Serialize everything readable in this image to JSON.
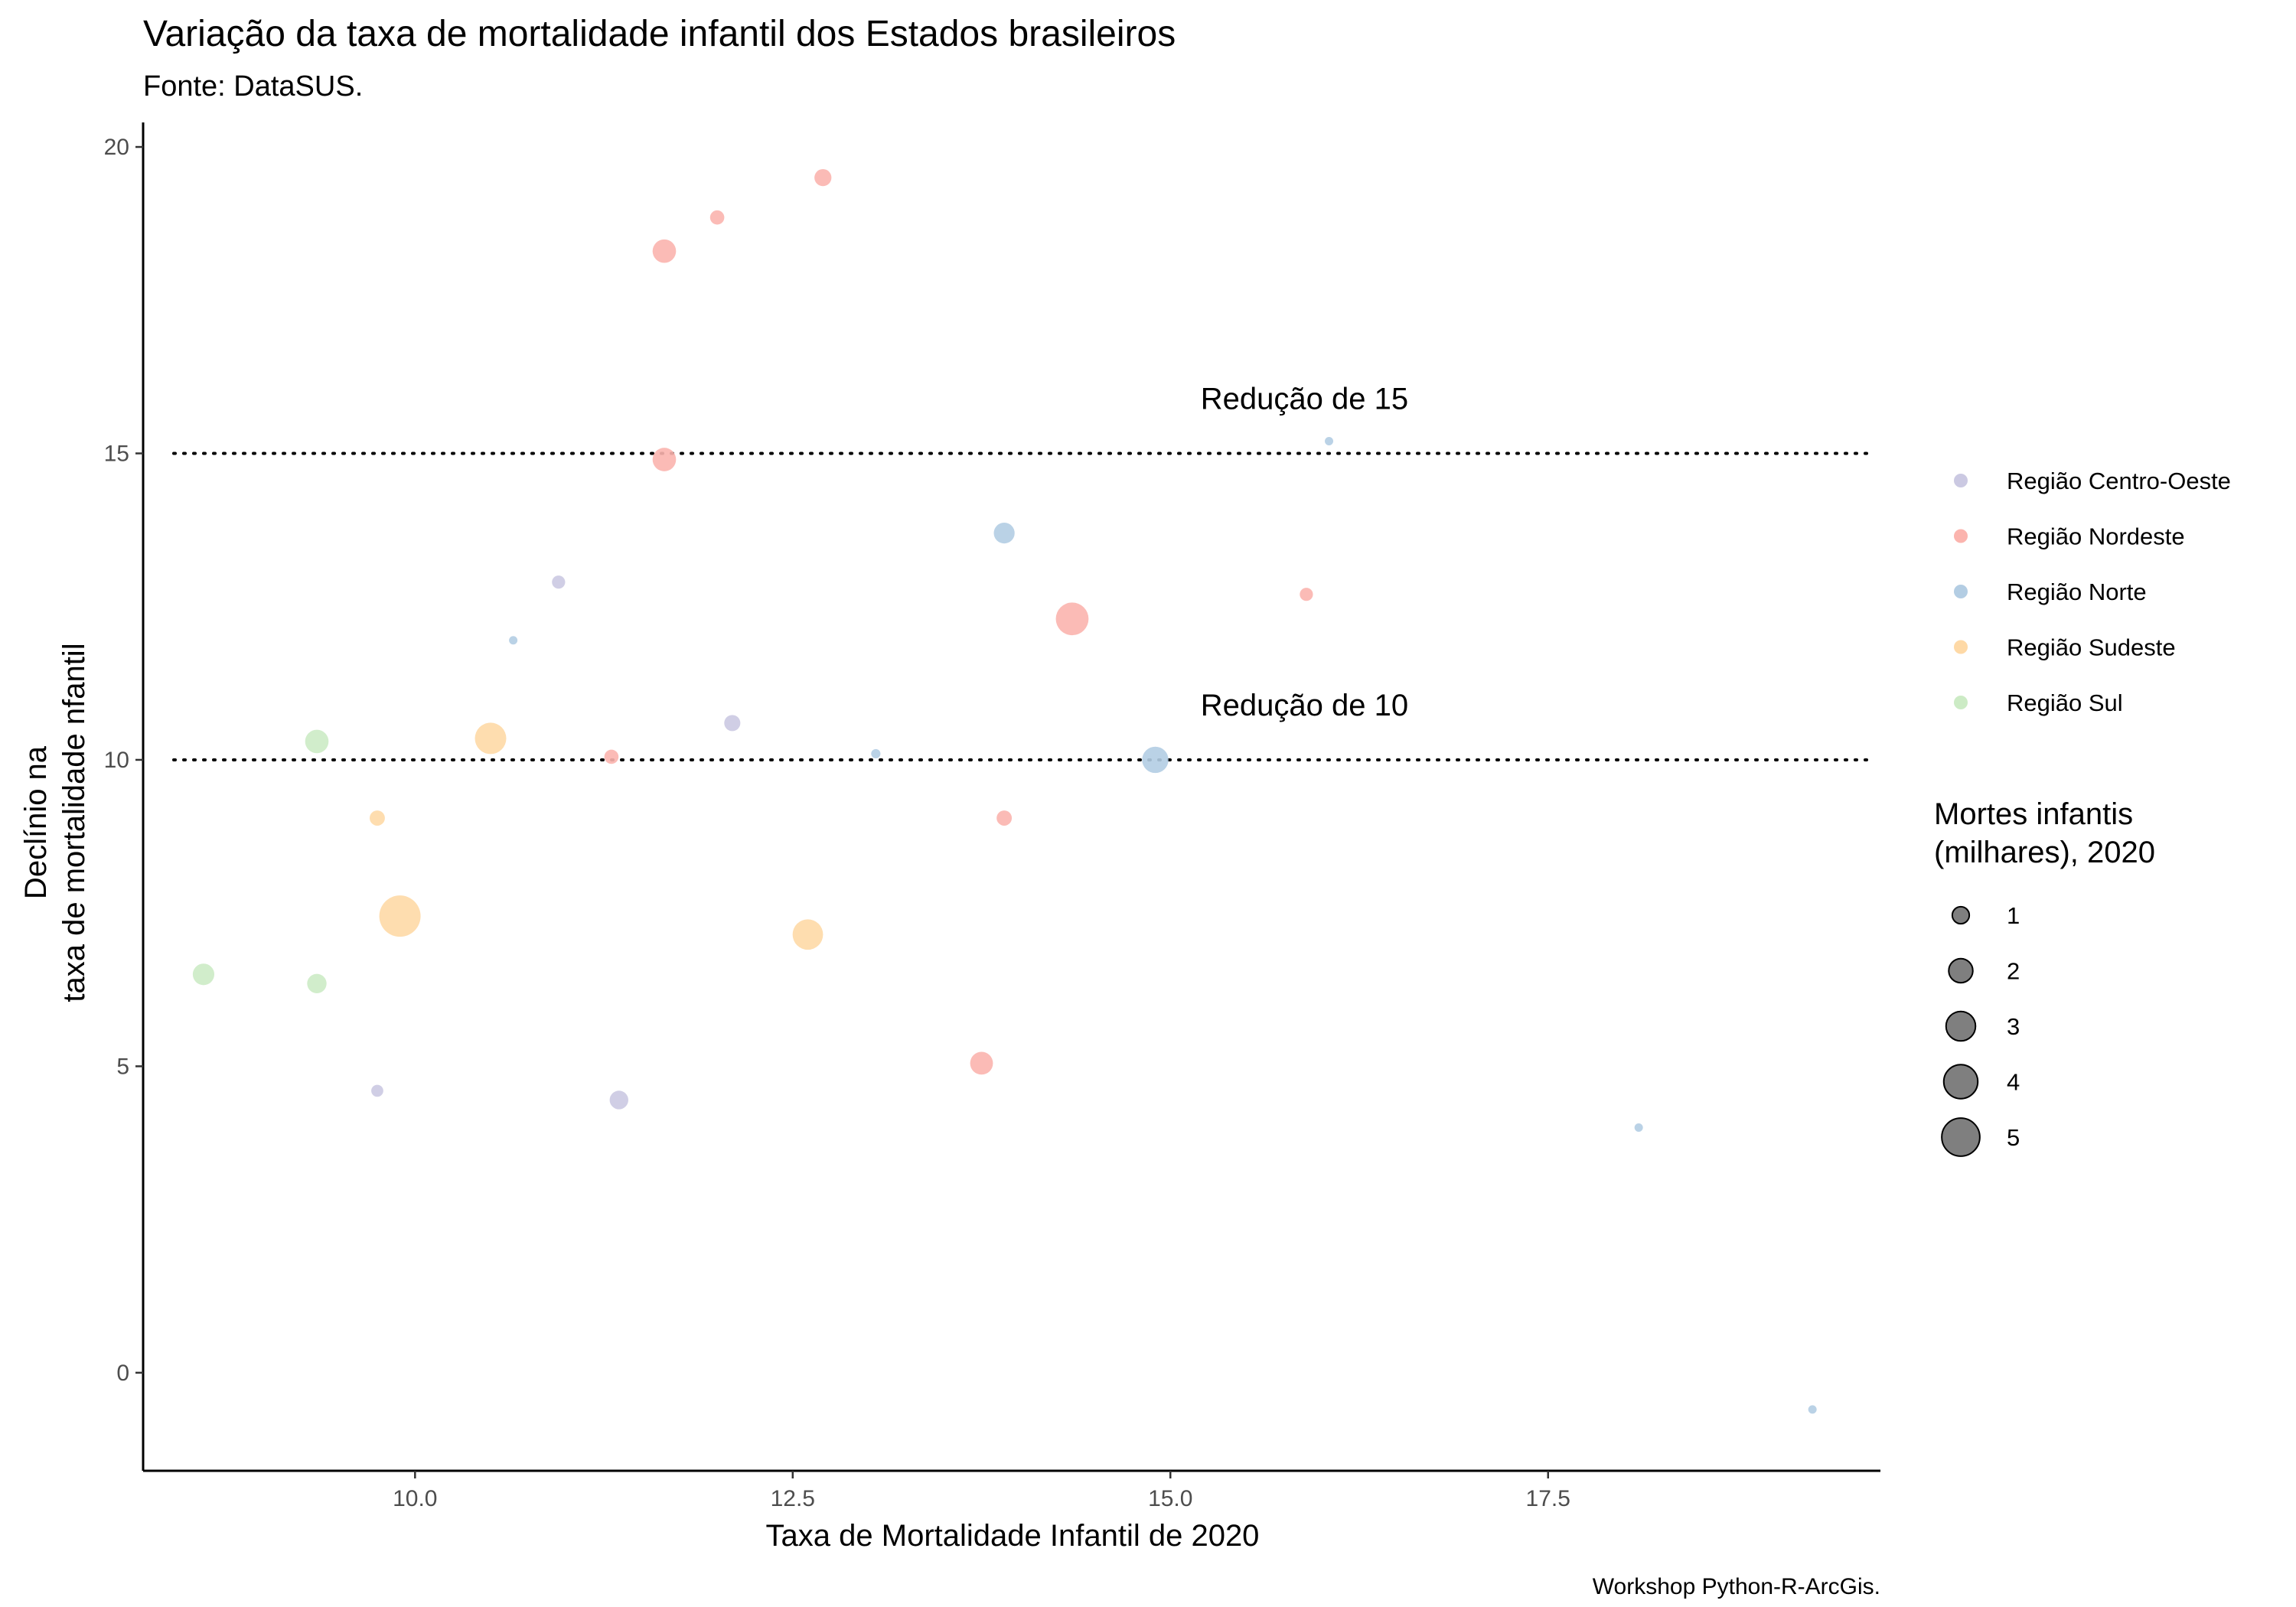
{
  "chart_data": {
    "type": "scatter",
    "title": "Variação da taxa de mortalidade infantil dos Estados brasileiros",
    "subtitle": "Fonte: DataSUS.",
    "xlabel": "Taxa de Mortalidade Infantil de 2020",
    "ylabel_lines": [
      "Declínio na",
      "taxa de mortalidade nfantil"
    ],
    "caption": "Workshop Python-R-ArcGis.",
    "xlim": [
      8.2,
      19.7
    ],
    "ylim": [
      -1.6,
      20.4
    ],
    "x_ticks": [
      10.0,
      12.5,
      15.0,
      17.5
    ],
    "x_tick_labels": [
      "10.0",
      "12.5",
      "15.0",
      "17.5"
    ],
    "y_ticks": [
      0,
      5,
      10,
      15,
      20
    ],
    "y_tick_labels": [
      "0",
      "5",
      "10",
      "15",
      "20"
    ],
    "grid": false,
    "reference_lines": [
      {
        "y": 15,
        "label": "Redução de 15",
        "label_x": 15.2,
        "label_y": 15.9,
        "style": "dotted"
      },
      {
        "y": 10,
        "label": "Redução de 10",
        "label_x": 15.2,
        "label_y": 10.9,
        "style": "dotted"
      }
    ],
    "color_legend_title": "",
    "size_legend_title": [
      "Mortes infantis",
      "(milhares), 2020"
    ],
    "size_legend_values": [
      1,
      2,
      3,
      4,
      5
    ],
    "legend_position": "right",
    "series": [
      {
        "name": "Região Centro-Oeste",
        "color": "#cbc9e2",
        "points": [
          {
            "x": 10.95,
            "y": 12.9,
            "size": 0.6
          },
          {
            "x": 12.1,
            "y": 10.6,
            "size": 0.9
          },
          {
            "x": 9.75,
            "y": 4.6,
            "size": 0.5
          },
          {
            "x": 11.35,
            "y": 4.45,
            "size": 1.2
          }
        ]
      },
      {
        "name": "Região Nordeste",
        "color": "#fbb4ae",
        "points": [
          {
            "x": 12.7,
            "y": 19.5,
            "size": 1.0
          },
          {
            "x": 12.0,
            "y": 18.85,
            "size": 0.7
          },
          {
            "x": 11.65,
            "y": 18.3,
            "size": 1.9
          },
          {
            "x": 11.65,
            "y": 14.9,
            "size": 1.9
          },
          {
            "x": 15.9,
            "y": 12.7,
            "size": 0.6
          },
          {
            "x": 14.35,
            "y": 12.3,
            "size": 3.7
          },
          {
            "x": 11.3,
            "y": 10.05,
            "size": 0.7
          },
          {
            "x": 13.9,
            "y": 9.05,
            "size": 0.8
          },
          {
            "x": 13.75,
            "y": 5.05,
            "size": 1.8
          }
        ]
      },
      {
        "name": "Região Norte",
        "color": "#b3cde3",
        "points": [
          {
            "x": 16.05,
            "y": 15.2,
            "size": 0.05
          },
          {
            "x": 13.9,
            "y": 13.7,
            "size": 1.5
          },
          {
            "x": 10.65,
            "y": 11.95,
            "size": 0.15
          },
          {
            "x": 13.05,
            "y": 10.1,
            "size": 0.3
          },
          {
            "x": 14.9,
            "y": 10.0,
            "size": 2.4
          },
          {
            "x": 18.1,
            "y": 4.0,
            "size": 0.2
          },
          {
            "x": 19.25,
            "y": -0.6,
            "size": 0.2
          }
        ]
      },
      {
        "name": "Região Sudeste",
        "color": "#fed9a6",
        "points": [
          {
            "x": 10.5,
            "y": 10.35,
            "size": 3.4
          },
          {
            "x": 9.75,
            "y": 9.05,
            "size": 0.8
          },
          {
            "x": 9.9,
            "y": 7.45,
            "size": 5.9
          },
          {
            "x": 12.6,
            "y": 7.15,
            "size": 3.2
          }
        ]
      },
      {
        "name": "Região Sul",
        "color": "#ccebc5",
        "points": [
          {
            "x": 9.35,
            "y": 10.3,
            "size": 1.9
          },
          {
            "x": 8.6,
            "y": 6.5,
            "size": 1.6
          },
          {
            "x": 9.35,
            "y": 6.35,
            "size": 1.3
          }
        ]
      }
    ]
  }
}
